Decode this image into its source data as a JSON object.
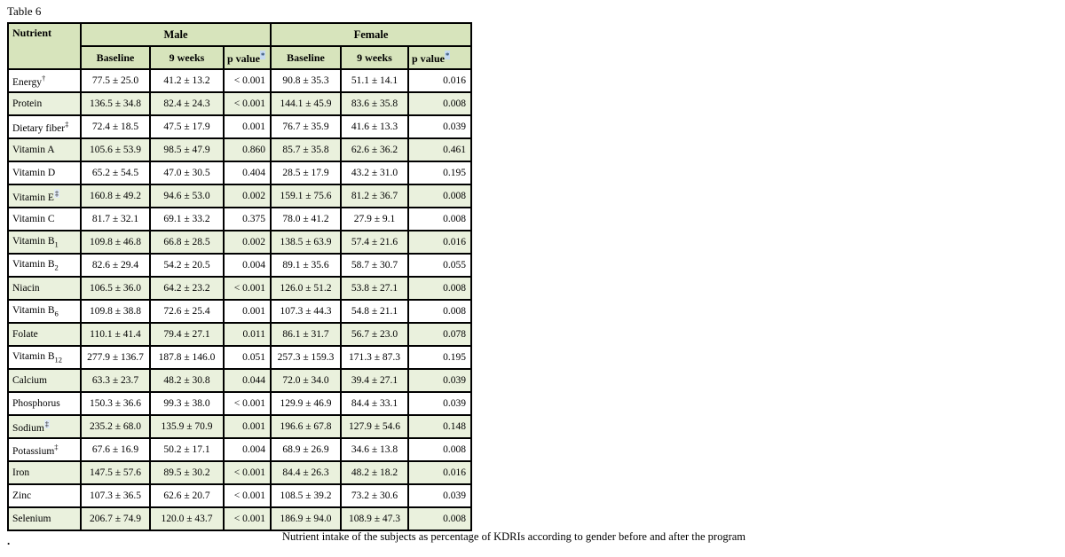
{
  "title": "Table 6",
  "caption": "Nutrient intake of the subjects as percentage of KDRIs according to gender before and after the program",
  "stray_dot": ".",
  "colors": {
    "header_green": "#d7e4bc",
    "row_band_green": "#eaf1dd",
    "asterisk_highlight_blue": "#c6daf0",
    "marker_highlight_blue": "#e1eaf6",
    "border_black": "#000000"
  },
  "table": {
    "nutrient_header": "Nutrient",
    "groups": [
      "Male",
      "Female"
    ],
    "sub_headers": [
      "Baseline",
      "9 weeks",
      "p value"
    ],
    "p_value_superscript": "*",
    "rows": [
      {
        "nutrient": "Energy",
        "sub": "",
        "sup": "†",
        "sup_highlight": false,
        "male": [
          "77.5 ± 25.0",
          "41.2 ± 13.2",
          "< 0.001"
        ],
        "female": [
          "90.8 ± 35.3",
          "51.1 ± 14.1",
          "0.016"
        ]
      },
      {
        "nutrient": "Protein",
        "sub": "",
        "sup": "",
        "sup_highlight": false,
        "male": [
          "136.5 ± 34.8",
          "82.4 ± 24.3",
          "< 0.001"
        ],
        "female": [
          "144.1 ± 45.9",
          "83.6 ± 35.8",
          "0.008"
        ]
      },
      {
        "nutrient": "Dietary fiber",
        "sub": "",
        "sup": "‡",
        "sup_highlight": false,
        "male": [
          "72.4 ± 18.5",
          "47.5 ± 17.9",
          "0.001"
        ],
        "female": [
          "76.7 ± 35.9",
          "41.6 ± 13.3",
          "0.039"
        ]
      },
      {
        "nutrient": "Vitamin A",
        "sub": "",
        "sup": "",
        "sup_highlight": false,
        "male": [
          "105.6 ± 53.9",
          "98.5 ± 47.9",
          "0.860"
        ],
        "female": [
          "85.7 ± 35.8",
          "62.6 ± 36.2",
          "0.461"
        ]
      },
      {
        "nutrient": "Vitamin D",
        "sub": "",
        "sup": "",
        "sup_highlight": false,
        "male": [
          "65.2 ± 54.5",
          "47.0 ± 30.5",
          "0.404"
        ],
        "female": [
          "28.5 ± 17.9",
          "43.2 ± 31.0",
          "0.195"
        ]
      },
      {
        "nutrient": "Vitamin E",
        "sub": "",
        "sup": "‡",
        "sup_highlight": true,
        "male": [
          "160.8 ± 49.2",
          "94.6 ± 53.0",
          "0.002"
        ],
        "female": [
          "159.1 ± 75.6",
          "81.2 ± 36.7",
          "0.008"
        ]
      },
      {
        "nutrient": "Vitamin C",
        "sub": "",
        "sup": "",
        "sup_highlight": false,
        "male": [
          "81.7 ± 32.1",
          "69.1 ± 33.2",
          "0.375"
        ],
        "female": [
          "78.0 ± 41.2",
          "27.9 ± 9.1",
          "0.008"
        ]
      },
      {
        "nutrient": "Vitamin B",
        "sub": "1",
        "sup": "",
        "sup_highlight": false,
        "male": [
          "109.8 ± 46.8",
          "66.8 ± 28.5",
          "0.002"
        ],
        "female": [
          "138.5 ± 63.9",
          "57.4 ± 21.6",
          "0.016"
        ]
      },
      {
        "nutrient": "Vitamin B",
        "sub": "2",
        "sup": "",
        "sup_highlight": false,
        "male": [
          "82.6 ± 29.4",
          "54.2 ± 20.5",
          "0.004"
        ],
        "female": [
          "89.1 ± 35.6",
          "58.7 ± 30.7",
          "0.055"
        ]
      },
      {
        "nutrient": "Niacin",
        "sub": "",
        "sup": "",
        "sup_highlight": false,
        "male": [
          "106.5 ± 36.0",
          "64.2 ± 23.2",
          "< 0.001"
        ],
        "female": [
          "126.0 ± 51.2",
          "53.8 ± 27.1",
          "0.008"
        ]
      },
      {
        "nutrient": "Vitamin B",
        "sub": "6",
        "sup": "",
        "sup_highlight": false,
        "male": [
          "109.8 ± 38.8",
          "72.6 ± 25.4",
          "0.001"
        ],
        "female": [
          "107.3 ± 44.3",
          "54.8 ± 21.1",
          "0.008"
        ]
      },
      {
        "nutrient": "Folate",
        "sub": "",
        "sup": "",
        "sup_highlight": false,
        "male": [
          "110.1 ± 41.4",
          "79.4 ± 27.1",
          "0.011"
        ],
        "female": [
          "86.1 ± 31.7",
          "56.7 ± 23.0",
          "0.078"
        ]
      },
      {
        "nutrient": "Vitamin B",
        "sub": "12",
        "sup": "",
        "sup_highlight": false,
        "male": [
          "277.9 ± 136.7",
          "187.8 ± 146.0",
          "0.051"
        ],
        "female": [
          "257.3 ± 159.3",
          "171.3 ± 87.3",
          "0.195"
        ]
      },
      {
        "nutrient": "Calcium",
        "sub": "",
        "sup": "",
        "sup_highlight": false,
        "male": [
          "63.3 ± 23.7",
          "48.2 ± 30.8",
          "0.044"
        ],
        "female": [
          "72.0 ± 34.0",
          "39.4 ± 27.1",
          "0.039"
        ]
      },
      {
        "nutrient": "Phosphorus",
        "sub": "",
        "sup": "",
        "sup_highlight": false,
        "male": [
          "150.3 ± 36.6",
          "99.3 ± 38.0",
          "< 0.001"
        ],
        "female": [
          "129.9 ± 46.9",
          "84.4 ± 33.1",
          "0.039"
        ]
      },
      {
        "nutrient": "Sodium",
        "sub": "",
        "sup": "‡",
        "sup_highlight": true,
        "male": [
          "235.2 ± 68.0",
          "135.9 ± 70.9",
          "0.001"
        ],
        "female": [
          "196.6 ± 67.8",
          "127.9 ± 54.6",
          "0.148"
        ]
      },
      {
        "nutrient": "Potassium",
        "sub": "",
        "sup": "‡",
        "sup_highlight": false,
        "male": [
          "67.6 ± 16.9",
          "50.2 ± 17.1",
          "0.004"
        ],
        "female": [
          "68.9 ± 26.9",
          "34.6 ± 13.8",
          "0.008"
        ]
      },
      {
        "nutrient": "Iron",
        "sub": "",
        "sup": "",
        "sup_highlight": false,
        "male": [
          "147.5 ± 57.6",
          "89.5 ± 30.2",
          "< 0.001"
        ],
        "female": [
          "84.4 ± 26.3",
          "48.2 ± 18.2",
          "0.016"
        ]
      },
      {
        "nutrient": "Zinc",
        "sub": "",
        "sup": "",
        "sup_highlight": false,
        "male": [
          "107.3 ± 36.5",
          "62.6 ± 20.7",
          "< 0.001"
        ],
        "female": [
          "108.5 ± 39.2",
          "73.2 ± 30.6",
          "0.039"
        ]
      },
      {
        "nutrient": "Selenium",
        "sub": "",
        "sup": "",
        "sup_highlight": false,
        "male": [
          "206.7 ± 74.9",
          "120.0 ± 43.7",
          "< 0.001"
        ],
        "female": [
          "186.9 ± 94.0",
          "108.9 ± 47.3",
          "0.008"
        ]
      }
    ]
  }
}
